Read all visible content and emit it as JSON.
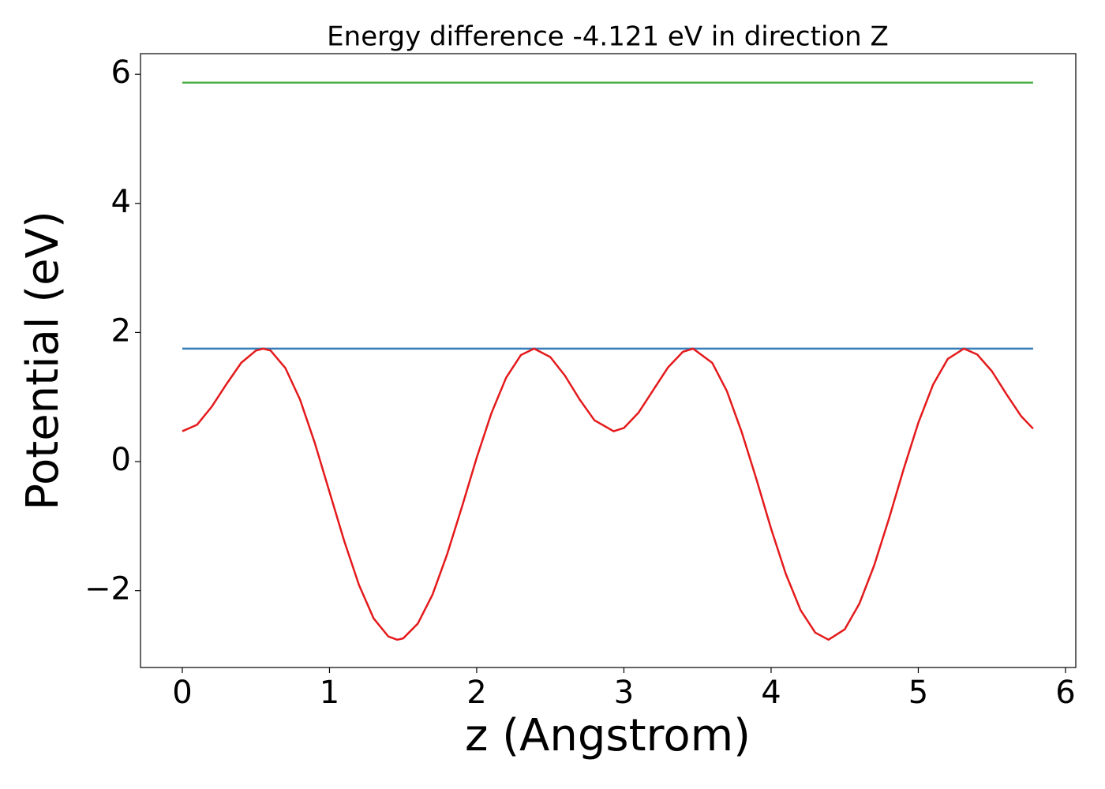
{
  "chart_data": {
    "type": "line",
    "title": "Energy difference -4.121 eV in direction Z",
    "x_label": "z (Angstrom)",
    "y_label": "Potential (eV)",
    "xlim": [
      -0.284,
      6.07
    ],
    "ylim": [
      -3.19,
      6.32
    ],
    "xticks": [
      0,
      1,
      2,
      3,
      4,
      5,
      6
    ],
    "yticks": [
      {
        "value": -2,
        "label": "−2"
      },
      0,
      2,
      4,
      6
    ],
    "grid": false,
    "series": [
      {
        "color": "#e41a1c",
        "x": [
          0,
          0.1,
          0.2,
          0.3,
          0.4,
          0.5,
          0.55,
          0.6,
          0.7,
          0.8,
          0.9,
          1.0,
          1.1,
          1.2,
          1.3,
          1.4,
          1.46,
          1.5,
          1.6,
          1.7,
          1.8,
          1.9,
          2.0,
          2.1,
          2.2,
          2.3,
          2.39,
          2.5,
          2.6,
          2.7,
          2.8,
          2.93,
          3.0,
          3.1,
          3.2,
          3.3,
          3.4,
          3.47,
          3.6,
          3.7,
          3.8,
          3.9,
          4.0,
          4.1,
          4.2,
          4.3,
          4.39,
          4.5,
          4.6,
          4.7,
          4.8,
          4.9,
          5.0,
          5.1,
          5.2,
          5.31,
          5.4,
          5.5,
          5.6,
          5.7,
          5.78
        ],
        "values": [
          0.47,
          0.57,
          0.85,
          1.2,
          1.53,
          1.72,
          1.75,
          1.72,
          1.45,
          0.96,
          0.29,
          -0.47,
          -1.23,
          -1.91,
          -2.43,
          -2.71,
          -2.76,
          -2.74,
          -2.51,
          -2.06,
          -1.43,
          -0.7,
          0.06,
          0.75,
          1.3,
          1.65,
          1.75,
          1.62,
          1.33,
          0.96,
          0.64,
          0.47,
          0.52,
          0.76,
          1.11,
          1.46,
          1.7,
          1.75,
          1.53,
          1.09,
          0.46,
          -0.27,
          -1.04,
          -1.74,
          -2.3,
          -2.65,
          -2.76,
          -2.6,
          -2.2,
          -1.61,
          -0.89,
          -0.12,
          0.6,
          1.19,
          1.59,
          1.75,
          1.66,
          1.4,
          1.04,
          0.7,
          0.51
        ]
      },
      {
        "color": "#377eb8",
        "x": [
          0,
          5.78
        ],
        "values": [
          1.75,
          1.75
        ]
      },
      {
        "color": "#4daf4a",
        "x": [
          0,
          5.78
        ],
        "values": [
          5.87,
          5.87
        ]
      }
    ]
  }
}
